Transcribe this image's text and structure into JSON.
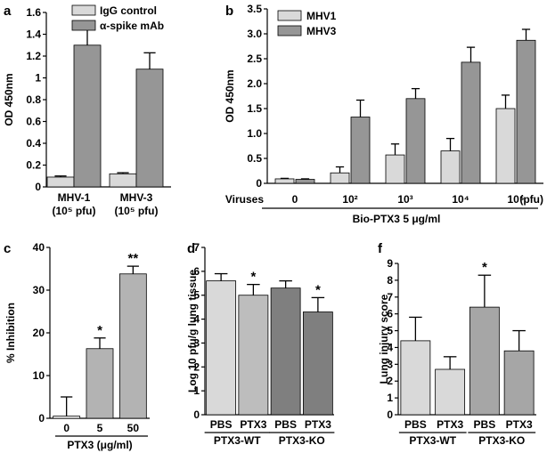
{
  "chart_data": [
    {
      "panel": "a",
      "type": "bar",
      "ylabel": "OD 450nm",
      "ylim": [
        0,
        1.6
      ],
      "yticks": [
        "0",
        "0.2",
        "0.4",
        "0.6",
        "0.8",
        "1",
        "1.2",
        "1.4",
        "1.6"
      ],
      "categories": [
        "MHV-1",
        "MHV-3"
      ],
      "category_sublabels": [
        "(10⁵ pfu)",
        "(10⁵ pfu)"
      ],
      "legend_position": "top-right",
      "series": [
        {
          "name": "IgG control",
          "color": "#d9d9d9",
          "values": [
            0.09,
            0.12
          ],
          "errors": [
            0.01,
            0.01
          ]
        },
        {
          "name": "α-spike mAb",
          "color": "#969696",
          "values": [
            1.3,
            1.08
          ],
          "errors": [
            0.18,
            0.15
          ]
        }
      ]
    },
    {
      "panel": "b",
      "type": "bar",
      "ylabel": "OD 450nm",
      "xlabel": "Bio-PTX3 5 μg/ml",
      "ylim": [
        0,
        3.5
      ],
      "yticks": [
        "0",
        "0.5",
        "1.0",
        "1.5",
        "2.0",
        "2.5",
        "3.0",
        "3.5"
      ],
      "row_label": "Viruses",
      "categories": [
        "0",
        "10²",
        "10³",
        "10⁴",
        "10⁵"
      ],
      "unit_label": "(pfu)",
      "legend_position": "top-left",
      "series": [
        {
          "name": "MHV1",
          "color": "#d9d9d9",
          "values": [
            0.09,
            0.21,
            0.57,
            0.65,
            1.5
          ],
          "errors": [
            0.01,
            0.12,
            0.22,
            0.25,
            0.27
          ]
        },
        {
          "name": "MHV3",
          "color": "#969696",
          "values": [
            0.08,
            1.33,
            1.7,
            2.43,
            2.87
          ],
          "errors": [
            0.01,
            0.34,
            0.2,
            0.3,
            0.22
          ]
        }
      ]
    },
    {
      "panel": "c",
      "type": "bar",
      "ylabel": "% Inhibition",
      "xlabel": "PTX3 (μg/ml)",
      "ylim": [
        0,
        40
      ],
      "yticks": [
        "0",
        "10",
        "20",
        "30",
        "40"
      ],
      "categories": [
        "0",
        "5",
        "50"
      ],
      "values": [
        0.5,
        16.3,
        33.8
      ],
      "errors": [
        4.5,
        2.5,
        1.8
      ],
      "colors": [
        "#ffffff",
        "#b3b3b3",
        "#b3b3b3"
      ],
      "annotations": [
        "",
        "*",
        "**"
      ]
    },
    {
      "panel": "d",
      "type": "bar",
      "ylabel": "Log 10 pfu/g lung tissue",
      "ylim": [
        0,
        7
      ],
      "yticks": [
        "0",
        "1",
        "2",
        "3",
        "4",
        "5",
        "6",
        "7"
      ],
      "categories": [
        "PBS",
        "PTX3",
        "PBS",
        "PTX3"
      ],
      "groups": [
        "PTX3-WT",
        "PTX3-KO"
      ],
      "values": [
        5.6,
        5.0,
        5.3,
        4.3
      ],
      "errors": [
        0.3,
        0.45,
        0.3,
        0.6
      ],
      "colors": [
        "#d9d9d9",
        "#bdbdbd",
        "#7f7f7f",
        "#7f7f7f"
      ],
      "annotations": [
        "",
        "*",
        "",
        "*"
      ]
    },
    {
      "panel": "f",
      "type": "bar",
      "ylabel": "Lung injury score",
      "ylim": [
        0,
        9
      ],
      "yticks": [
        "0",
        "1",
        "2",
        "3",
        "4",
        "5",
        "6",
        "7",
        "8",
        "9"
      ],
      "categories": [
        "PBS",
        "PTX3",
        "PBS",
        "PTX3"
      ],
      "groups": [
        "PTX3-WT",
        "PTX3-KO"
      ],
      "values": [
        4.4,
        2.7,
        6.4,
        3.8
      ],
      "errors": [
        1.4,
        0.75,
        1.9,
        1.2
      ],
      "colors": [
        "#d9d9d9",
        "#d9d9d9",
        "#a6a6a6",
        "#a6a6a6"
      ],
      "annotations": [
        "",
        "",
        "*",
        ""
      ]
    }
  ]
}
